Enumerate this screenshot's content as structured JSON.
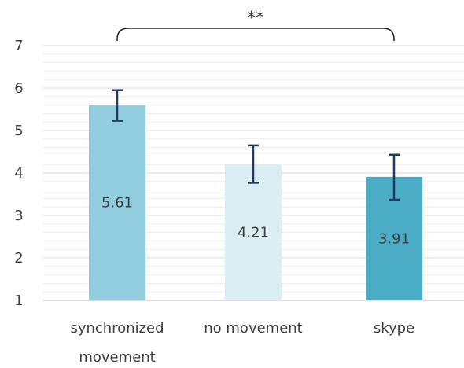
{
  "chart_data": {
    "type": "bar",
    "categories": [
      "synchronized movement",
      "no movement",
      "skype"
    ],
    "category_label_lines": [
      [
        "synchronized",
        "movement"
      ],
      [
        "no movement"
      ],
      [
        "skype"
      ]
    ],
    "values": [
      5.61,
      4.21,
      3.91
    ],
    "value_labels": [
      "5.61",
      "4.21",
      "3.91"
    ],
    "error_bars": [
      {
        "low": 5.23,
        "high": 5.95
      },
      {
        "low": 3.77,
        "high": 4.65
      },
      {
        "low": 3.37,
        "high": 4.43
      }
    ],
    "bar_colors": [
      "#92cddf",
      "#daeef3",
      "#4bacc6"
    ],
    "error_bar_color": "#1f3864",
    "ylim": [
      1,
      7
    ],
    "yticks": [
      "1",
      "2",
      "3",
      "4",
      "5",
      "6",
      "7"
    ],
    "minor_gridlines_per_unit": 5,
    "grid": true,
    "title": "",
    "xlabel": "",
    "ylabel": "",
    "significance": {
      "label": "**",
      "from_category": 0,
      "to_category": 2
    }
  }
}
